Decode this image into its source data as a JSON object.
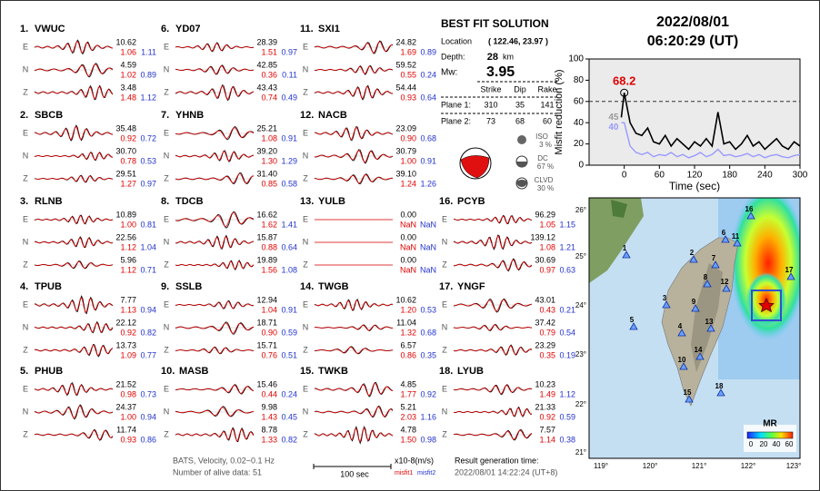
{
  "header": {
    "date": "2022/08/01",
    "time": "06:20:29  (UT)"
  },
  "components": [
    "E",
    "N",
    "Z"
  ],
  "stations": [
    {
      "index": "1.",
      "name": "VWUC",
      "traces": [
        [
          "10.62",
          "1.06",
          "1.11"
        ],
        [
          "4.59",
          "1.02",
          "0.89"
        ],
        [
          "3.48",
          "1.48",
          "1.12"
        ]
      ]
    },
    {
      "index": "2.",
      "name": "SBCB",
      "traces": [
        [
          "35.48",
          "0.92",
          "0.72"
        ],
        [
          "30.70",
          "0.78",
          "0.53"
        ],
        [
          "29.51",
          "1.27",
          "0.97"
        ]
      ]
    },
    {
      "index": "3.",
      "name": "RLNB",
      "traces": [
        [
          "10.89",
          "1.00",
          "0.81"
        ],
        [
          "22.56",
          "1.12",
          "1.04"
        ],
        [
          "5.96",
          "1.12",
          "0.71"
        ]
      ]
    },
    {
      "index": "4.",
      "name": "TPUB",
      "traces": [
        [
          "7.77",
          "1.13",
          "0.94"
        ],
        [
          "22.12",
          "0.92",
          "0.82"
        ],
        [
          "13.73",
          "1.09",
          "0.77"
        ]
      ]
    },
    {
      "index": "5.",
      "name": "PHUB",
      "traces": [
        [
          "21.52",
          "0.98",
          "0.73"
        ],
        [
          "24.37",
          "1.00",
          "0.94"
        ],
        [
          "11.74",
          "0.93",
          "0.86"
        ]
      ]
    },
    {
      "index": "6.",
      "name": "YD07",
      "traces": [
        [
          "28.39",
          "1.51",
          "0.97"
        ],
        [
          "42.85",
          "0.36",
          "0.11"
        ],
        [
          "43.43",
          "0.74",
          "0.49"
        ]
      ]
    },
    {
      "index": "7.",
      "name": "YHNB",
      "traces": [
        [
          "25.21",
          "1.08",
          "0.91"
        ],
        [
          "39.20",
          "1.30",
          "1.29"
        ],
        [
          "31.40",
          "0.85",
          "0.58"
        ]
      ]
    },
    {
      "index": "8.",
      "name": "TDCB",
      "traces": [
        [
          "16.62",
          "1.62",
          "1.41"
        ],
        [
          "15.87",
          "0.88",
          "0.64"
        ],
        [
          "19.89",
          "1.56",
          "1.08"
        ]
      ]
    },
    {
      "index": "9.",
      "name": "SSLB",
      "traces": [
        [
          "12.94",
          "1.04",
          "0.91"
        ],
        [
          "18.71",
          "0.90",
          "0.59"
        ],
        [
          "15.71",
          "0.76",
          "0.51"
        ]
      ]
    },
    {
      "index": "10.",
      "name": "MASB",
      "traces": [
        [
          "15.46",
          "0.44",
          "0.24"
        ],
        [
          "9.98",
          "1.43",
          "0.45"
        ],
        [
          "8.78",
          "1.33",
          "0.82"
        ]
      ]
    },
    {
      "index": "11.",
      "name": "SXI1",
      "traces": [
        [
          "24.82",
          "1.69",
          "0.89"
        ],
        [
          "59.52",
          "0.55",
          "0.24"
        ],
        [
          "54.44",
          "0.93",
          "0.64"
        ]
      ]
    },
    {
      "index": "12.",
      "name": "NACB",
      "traces": [
        [
          "23.09",
          "0.90",
          "0.68"
        ],
        [
          "30.79",
          "1.00",
          "0.91"
        ],
        [
          "39.10",
          "1.24",
          "1.26"
        ]
      ]
    },
    {
      "index": "13.",
      "name": "YULB",
      "traces": [
        [
          "0.00",
          "NaN",
          "NaN"
        ],
        [
          "0.00",
          "NaN",
          "NaN"
        ],
        [
          "0.00",
          "NaN",
          "NaN"
        ]
      ]
    },
    {
      "index": "14.",
      "name": "TWGB",
      "traces": [
        [
          "10.62",
          "1.20",
          "0.53"
        ],
        [
          "11.04",
          "1.32",
          "0.68"
        ],
        [
          "6.57",
          "0.86",
          "0.35"
        ]
      ]
    },
    {
      "index": "15.",
      "name": "TWKB",
      "traces": [
        [
          "4.85",
          "1.77",
          "0.92"
        ],
        [
          "5.21",
          "2.03",
          "1.16"
        ],
        [
          "4.78",
          "1.50",
          "0.98"
        ]
      ]
    },
    {
      "index": "16.",
      "name": "PCYB",
      "traces": [
        [
          "96.29",
          "1.05",
          "1.15"
        ],
        [
          "139.12",
          "1.08",
          "1.21"
        ],
        [
          "30.69",
          "0.97",
          "0.63"
        ]
      ]
    },
    {
      "index": "17.",
      "name": "YNGF",
      "traces": [
        [
          "43.01",
          "0.43",
          "0.21"
        ],
        [
          "37.42",
          "0.79",
          "0.54"
        ],
        [
          "23.29",
          "0.35",
          "0.19"
        ]
      ]
    },
    {
      "index": "18.",
      "name": "LYUB",
      "traces": [
        [
          "10.23",
          "1.49",
          "1.12"
        ],
        [
          "21.33",
          "0.92",
          "0.59"
        ],
        [
          "7.57",
          "1.14",
          "0.38"
        ]
      ]
    }
  ],
  "solution": {
    "title": "BEST FIT SOLUTION",
    "location_label": "Location",
    "location": "( 122.46,  23.97 )",
    "depth_label": "Depth:",
    "depth": "28",
    "depth_unit": "km",
    "mw_label": "Mw:",
    "mw": "3.95",
    "headers": [
      "Strike",
      "Dip",
      "Rake"
    ],
    "planes": [
      {
        "label": "Plane 1:",
        "values": [
          "310",
          "35",
          "141"
        ]
      },
      {
        "label": "Plane 2:",
        "values": [
          "73",
          "68",
          "60"
        ]
      }
    ],
    "decomposition": [
      {
        "name": "ISO",
        "pct": "3 %"
      },
      {
        "name": "DC",
        "pct": "67 %"
      },
      {
        "name": "CLVD",
        "pct": "30 %"
      }
    ]
  },
  "chart_data": {
    "type": "line",
    "ylabel": "Misfit reduction (%)",
    "xlabel": "Time (sec)",
    "x": [
      -5,
      0,
      10,
      20,
      30,
      40,
      50,
      60,
      70,
      80,
      90,
      100,
      110,
      120,
      130,
      140,
      150,
      160,
      170,
      180,
      190,
      200,
      210,
      220,
      230,
      240,
      250,
      260,
      270,
      280,
      290,
      300
    ],
    "series": [
      {
        "color": "#000000",
        "values": [
          45,
          68.2,
          40,
          30,
          28,
          35,
          22,
          20,
          28,
          18,
          25,
          20,
          15,
          22,
          18,
          25,
          18,
          50,
          20,
          22,
          15,
          20,
          28,
          18,
          22,
          15,
          20,
          25,
          18,
          15,
          22,
          18
        ]
      },
      {
        "color": "#9999ff",
        "values": [
          40,
          40,
          18,
          12,
          10,
          12,
          8,
          10,
          9,
          12,
          8,
          10,
          7,
          9,
          12,
          8,
          10,
          15,
          9,
          10,
          8,
          9,
          11,
          8,
          10,
          7,
          9,
          10,
          8,
          7,
          9,
          10
        ]
      }
    ],
    "xlim": [
      -60,
      300
    ],
    "ylim": [
      0,
      100
    ],
    "xticks": [
      0,
      60,
      120,
      180,
      240,
      300
    ],
    "yticks": [
      0,
      20,
      40,
      60,
      80,
      100
    ],
    "reference_line": 60,
    "annotations": [
      "68.2",
      "45",
      "40"
    ]
  },
  "map": {
    "lon_ticks": [
      "119°",
      "120°",
      "121°",
      "122°",
      "123°"
    ],
    "lat_ticks": [
      "26°",
      "25°",
      "24°",
      "23°",
      "22°",
      "21°"
    ],
    "stations": [
      "16",
      "1",
      "6",
      "11",
      "2",
      "7",
      "8",
      "12",
      "17",
      "3",
      "9",
      "5",
      "13",
      "4",
      "14",
      "10",
      "15",
      "18"
    ],
    "colorbar_title": "MR",
    "colorbar_ticks": [
      "0",
      "20",
      "40",
      "60"
    ]
  },
  "footer": {
    "filter": "BATS, Velocity, 0.02~0.1 Hz",
    "alive": "Number of alive data: 51",
    "scale_label": "100 sec",
    "units": "x10-8(m/s)",
    "misfit1": "misfit1",
    "misfit2": "misfit2",
    "gen_label": "Result generation time:",
    "gen_time": "2022/08/01 14:22:24 (UT+8)"
  }
}
